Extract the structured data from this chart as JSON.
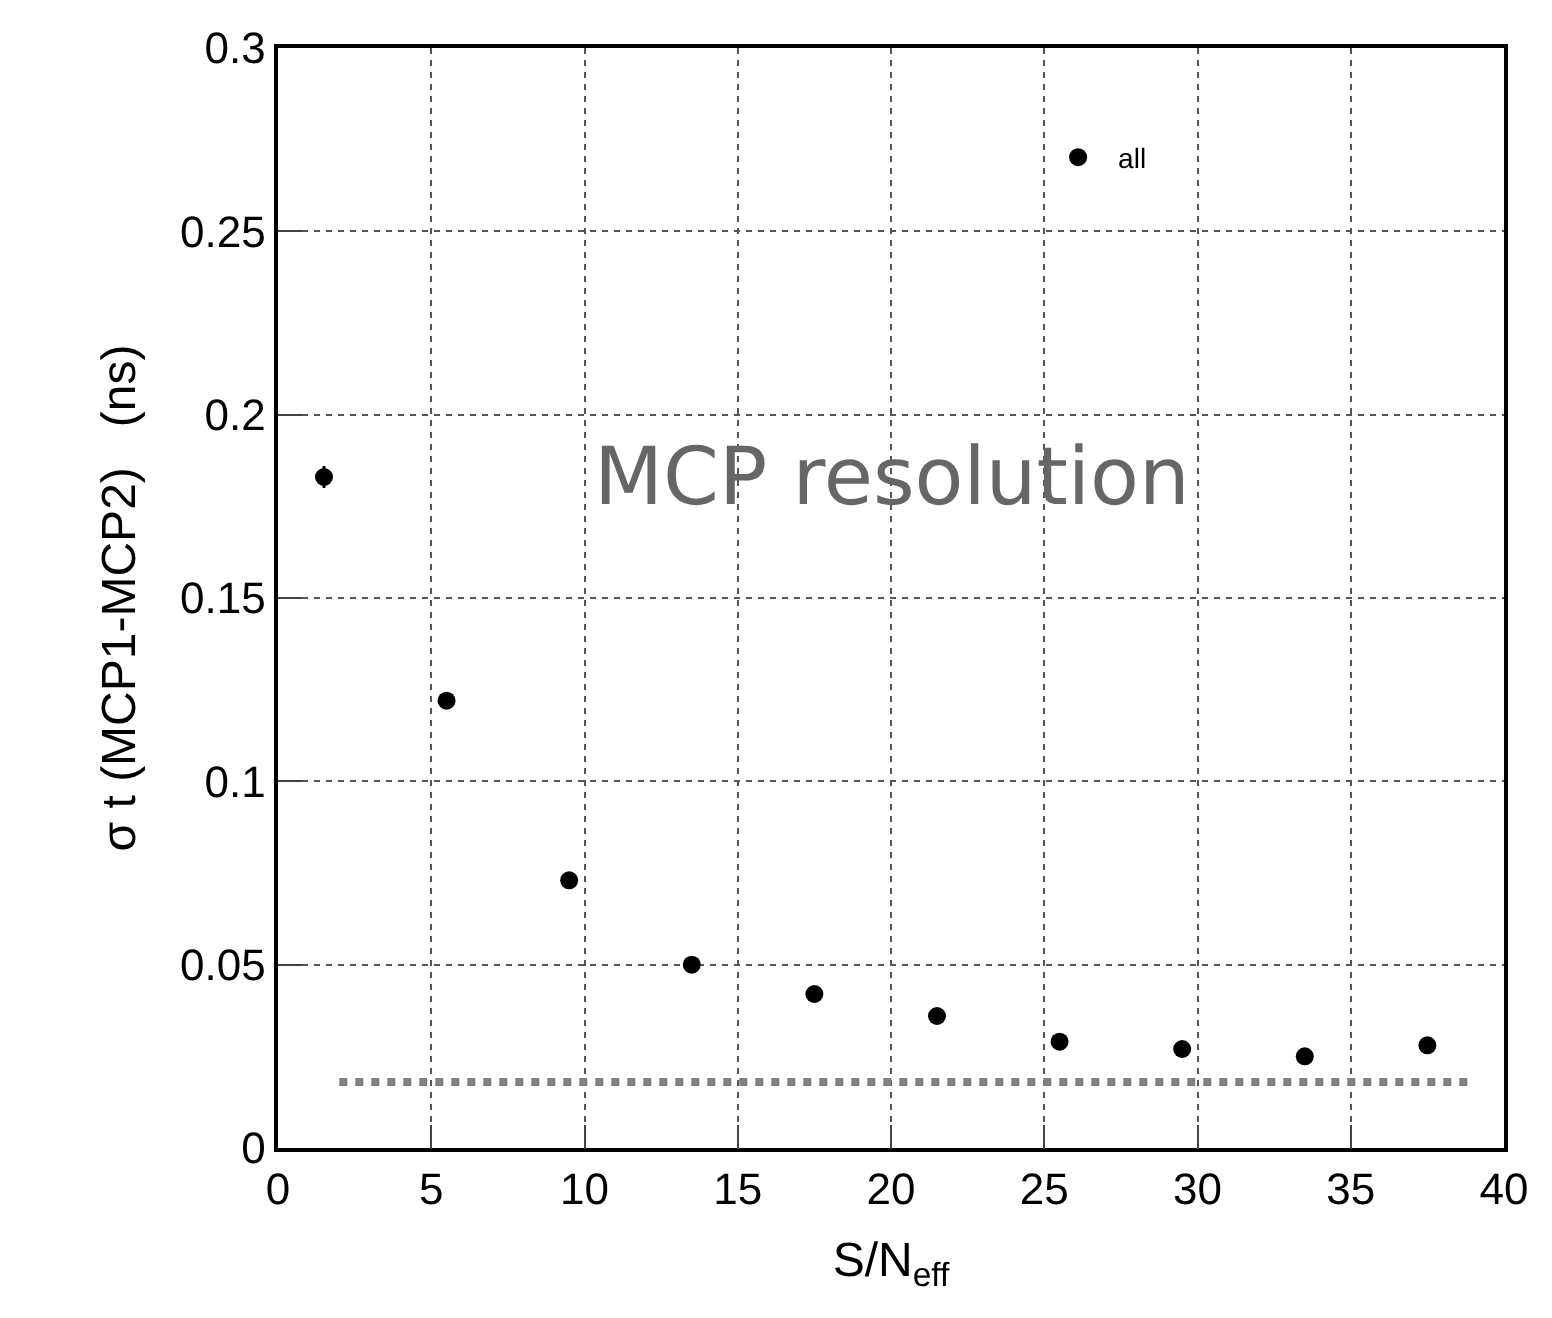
{
  "chart_data": {
    "type": "scatter",
    "xlabel": "S/N$_{eff}$",
    "ylabel": "σ t (MCP1-MCP2)   (ns)",
    "x": [
      1.5,
      5.5,
      9.5,
      13.5,
      17.5,
      21.5,
      25.5,
      29.5,
      33.5,
      37.5
    ],
    "series": [
      {
        "name": "all",
        "color": "#000000",
        "values": [
          0.183,
          0.122,
          0.073,
          0.05,
          0.042,
          0.036,
          0.029,
          0.027,
          0.025,
          0.028
        ],
        "errors": [
          0.003,
          null,
          null,
          null,
          null,
          null,
          null,
          null,
          null,
          0.002
        ],
        "marker": "circle"
      },
      {
        "type": "line",
        "color": "#808080",
        "x": [
          2,
          39
        ],
        "values": [
          0.018,
          0.018
        ],
        "line_style": "dotted"
      }
    ],
    "annotations": [
      "MCP resolution"
    ],
    "xlim": [
      0,
      40
    ],
    "xticks": [
      0,
      5,
      10,
      15,
      20,
      25,
      30,
      35,
      40
    ],
    "ylim": [
      0,
      0.3
    ],
    "yticks": [
      0,
      0.05,
      0.1,
      0.15,
      0.2,
      0.25,
      0.3
    ],
    "grid": true,
    "legend": "top right"
  }
}
